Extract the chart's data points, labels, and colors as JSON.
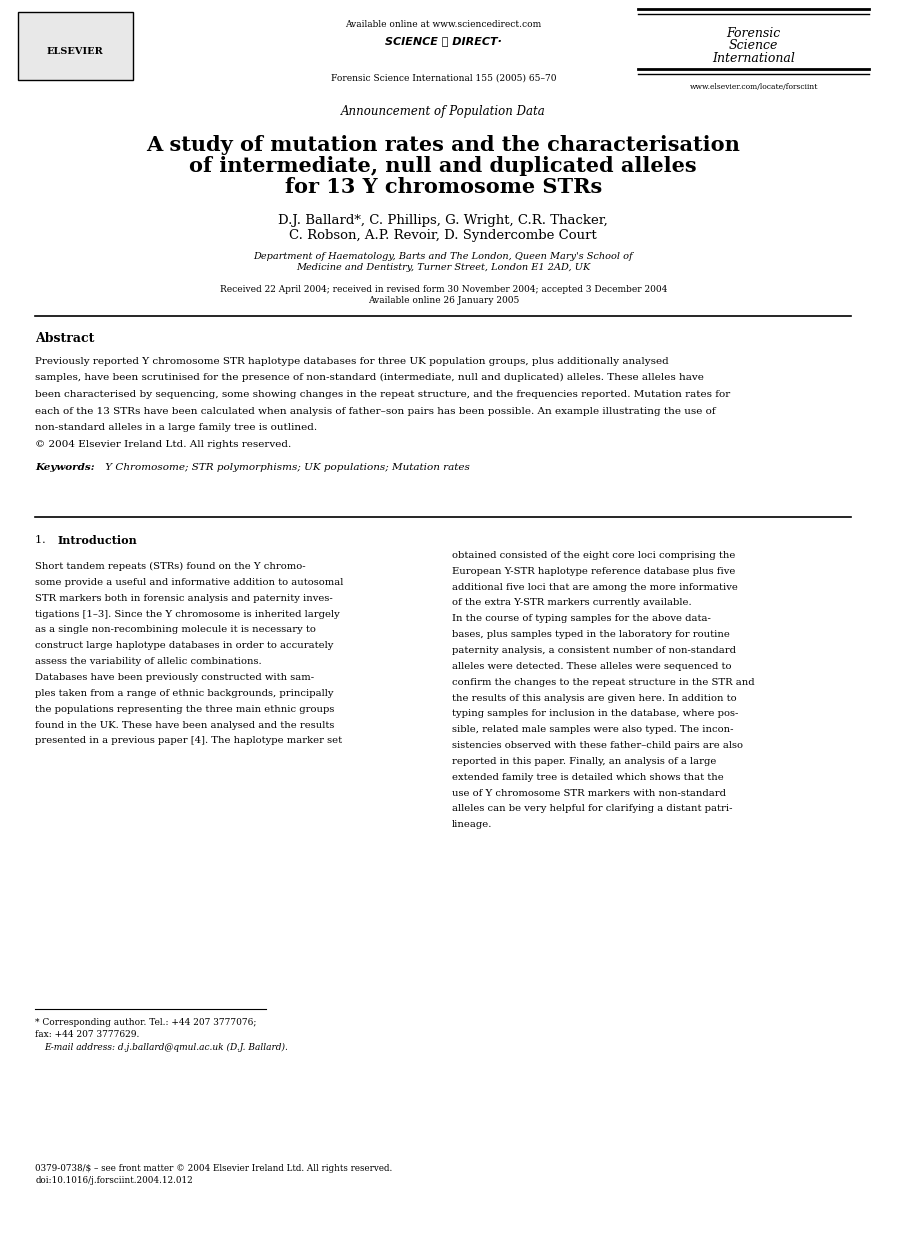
{
  "bg_color": "#ffffff",
  "page_width": 9.07,
  "page_height": 12.38,
  "dpi": 100,
  "header": {
    "available_online": "Available online at www.sciencedirect.com",
    "journal_line": "Forensic Science International 155 (2005) 65–70",
    "science_direct_text": "SCIENCE ⓓ DIRECT·",
    "elsevier_text": "ELSEVIER",
    "journal_logo_lines": [
      "Forensic",
      "Science",
      "International"
    ],
    "website": "www.elsevier.com/locate/forsciint"
  },
  "announcement": "Announcement of Population Data",
  "title_lines": [
    "A study of mutation rates and the characterisation",
    "of intermediate, null and duplicated alleles",
    "for 13 Y chromosome STRs"
  ],
  "authors_line1": "D.J. Ballard*, C. Phillips, G. Wright, C.R. Thacker,",
  "authors_line2": "C. Robson, A.P. Revoir, D. Syndercombe Court",
  "affiliation_line1": "Department of Haematology, Barts and The London, Queen Mary's School of",
  "affiliation_line2": "Medicine and Dentistry, Turner Street, London E1 2AD, UK",
  "received_line1": "Received 22 April 2004; received in revised form 30 November 2004; accepted 3 December 2004",
  "received_line2": "Available online 26 January 2005",
  "abstract_header": "Abstract",
  "abstract_text": "Previously reported Y chromosome STR haplotype databases for three UK population groups, plus additionally analysed\nsamples, have been scrutinised for the presence of non-standard (intermediate, null and duplicated) alleles. These alleles have\nbeen characterised by sequencing, some showing changes in the repeat structure, and the frequencies reported. Mutation rates for\neach of the 13 STRs have been calculated when analysis of father–son pairs has been possible. An example illustrating the use of\nnon-standard alleles in a large family tree is outlined.\n© 2004 Elsevier Ireland Ltd. All rights reserved.",
  "keywords_label": "Keywords:",
  "keywords_text": " Y Chromosome; STR polymorphisms; UK populations; Mutation rates",
  "section_header": "1.  Introduction",
  "intro_col1_p1": "Short tandem repeats (STRs) found on the Y chromo-\nsome provide a useful and informative addition to autosomal\nSTR markers both in forensic analysis and paternity inves-\ntigations [1–3]. Since the Y chromosome is inherited largely\nas a single non-recombining molecule it is necessary to\nconstruct large haplotype databases in order to accurately\nassess the variability of allelic combinations.",
  "intro_col1_p2": "Databases have been previously constructed with sam-\nples taken from a range of ethnic backgrounds, principally\nthe populations representing the three main ethnic groups\nfound in the UK. These have been analysed and the results\npresented in a previous paper [4]. The haplotype marker set",
  "intro_col2_p1": "obtained consisted of the eight core loci comprising the\nEuropean Y-STR haplotype reference database plus five\nadditional five loci that are among the more informative\nof the extra Y-STR markers currently available.",
  "intro_col2_p2": "In the course of typing samples for the above data-\nbases, plus samples typed in the laboratory for routine\npaternity analysis, a consistent number of non-standard\nalleles were detected. These alleles were sequenced to\nconfirm the changes to the repeat structure in the STR and\nthe results of this analysis are given here. In addition to\ntyping samples for inclusion in the database, where pos-\nsible, related male samples were also typed. The incon-\nsistencies observed with these father–child pairs are also\nreported in this paper. Finally, an analysis of a large\nextended family tree is detailed which shows that the\nuse of Y chromosome STR markers with non-standard\nalleles can be very helpful for clarifying a distant patri-\nlineage.",
  "footnote_star": "* Corresponding author. Tel.: +44 207 3777076;",
  "footnote_fax": "fax: +44 207 3777629.",
  "footnote_email": "E-mail address: d.j.ballard@qmul.ac.uk (D.J. Ballard).",
  "bottom_line1": "0379-0738/$ – see front matter © 2004 Elsevier Ireland Ltd. All rights reserved.",
  "bottom_line2": "doi:10.1016/j.forsciint.2004.12.012"
}
